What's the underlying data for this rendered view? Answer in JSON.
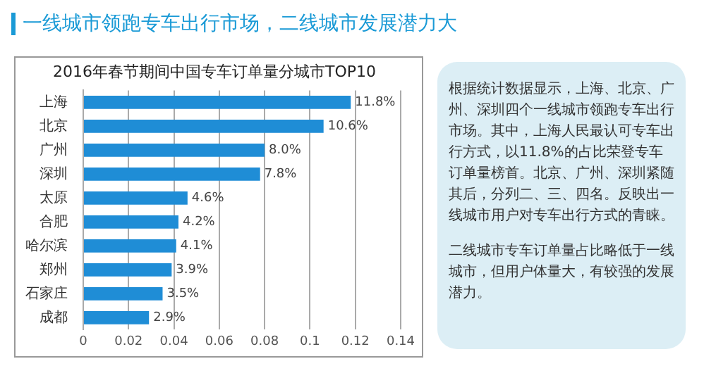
{
  "chart_data": {
    "type": "bar",
    "orientation": "horizontal",
    "title": "一线城市领跑专车出行市场，二线城市发展潜力大",
    "subtitle": "2016年春节期间中国专车订单量分城市TOP10",
    "categories": [
      "上海",
      "北京",
      "广州",
      "深圳",
      "太原",
      "合肥",
      "哈尔滨",
      "郑州",
      "石家庄",
      "成都"
    ],
    "values": [
      0.118,
      0.106,
      0.08,
      0.078,
      0.046,
      0.042,
      0.041,
      0.039,
      0.035,
      0.029
    ],
    "value_labels": [
      "11.8%",
      "10.6%",
      "8.0%",
      "7.8%",
      "4.6%",
      "4.2%",
      "4.1%",
      "3.9%",
      "3.5%",
      "2.9%"
    ],
    "color": "#1f8dd6",
    "xlim": [
      0,
      0.14
    ],
    "xticks": [
      0,
      0.02,
      0.04,
      0.06,
      0.08,
      0.1,
      0.12,
      0.14
    ],
    "grid": "x",
    "legend": false,
    "annotations": [
      "根据统计数据显示，上海、北京、广州、深圳四个一线城市领跑专车出行市场。其中，上海人民最认可专车出行方式，以11.8%的占比荣登专车订单量榜首。北京、广州、深圳紧随其后，分列二、三、四名。反映出一线城市用户对专车出行方式的青睐。",
      "二线城市专车订单量占比略低于一线城市，但用户体量大，有较强的发展潜力。"
    ]
  }
}
